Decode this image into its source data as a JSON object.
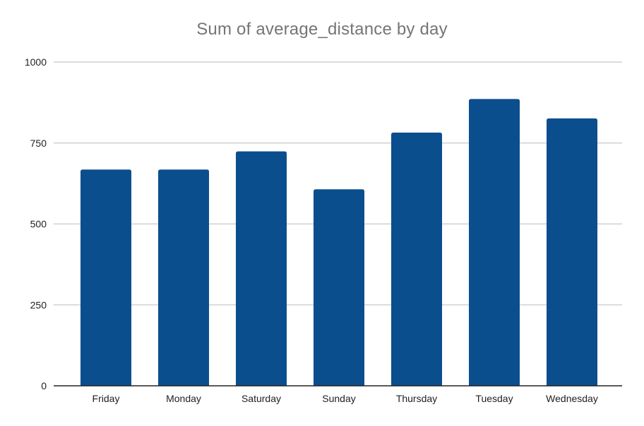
{
  "chart_data": {
    "type": "bar",
    "title": "Sum of average_distance by day",
    "xlabel": "",
    "ylabel": "",
    "categories": [
      "Friday",
      "Monday",
      "Saturday",
      "Sunday",
      "Thursday",
      "Tuesday",
      "Wednesday"
    ],
    "values": [
      668,
      668,
      724,
      607,
      782,
      886,
      826
    ],
    "ylim": [
      0,
      1000
    ],
    "yticks": [
      0,
      250,
      500,
      750,
      1000
    ],
    "grid": true,
    "legend": "none",
    "bar_color": "#0b4e8e"
  }
}
